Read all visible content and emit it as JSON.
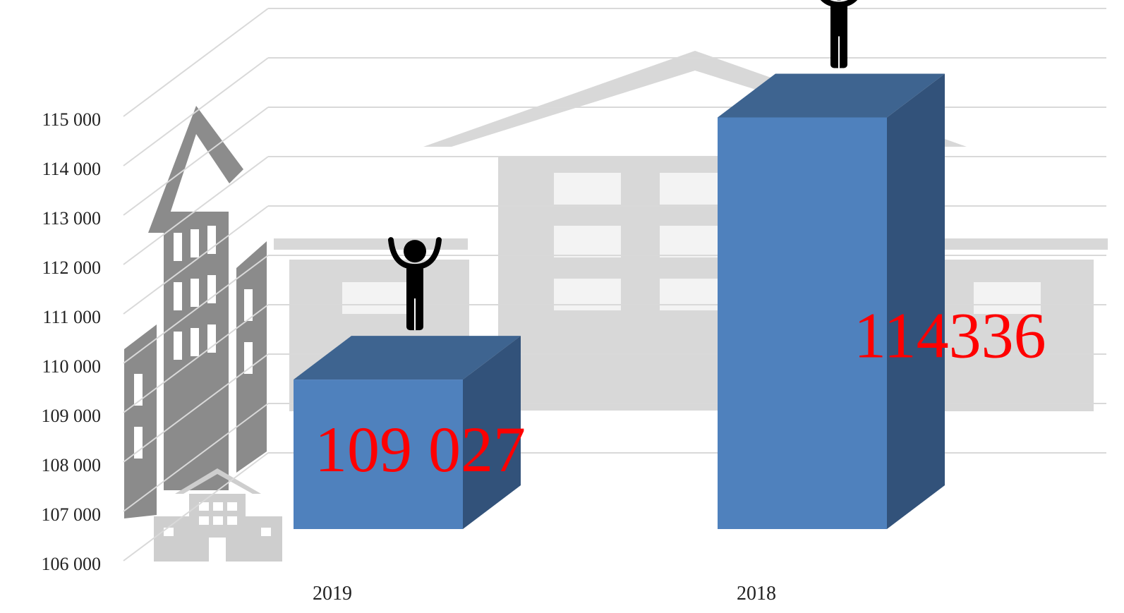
{
  "chart_data": {
    "type": "bar3d",
    "categories": [
      "2019",
      "2018"
    ],
    "values": [
      109027,
      114336
    ],
    "value_labels": [
      "109 027",
      "114336"
    ],
    "color": "#4f81bd",
    "ylim": [
      106000,
      115000
    ],
    "yticks": [
      {
        "value": 106000,
        "label": "106 000"
      },
      {
        "value": 107000,
        "label": "107 000"
      },
      {
        "value": 108000,
        "label": "108 000"
      },
      {
        "value": 109000,
        "label": "109 000"
      },
      {
        "value": 110000,
        "label": "110 000"
      },
      {
        "value": 111000,
        "label": "111 000"
      },
      {
        "value": 112000,
        "label": "112 000"
      },
      {
        "value": 113000,
        "label": "113 000"
      },
      {
        "value": 114000,
        "label": "114 000"
      },
      {
        "value": 115000,
        "label": "115 000"
      }
    ],
    "grid": true
  }
}
